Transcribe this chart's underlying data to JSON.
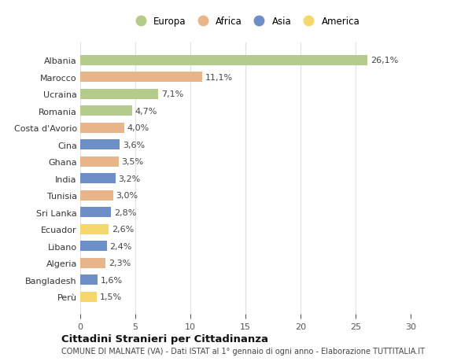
{
  "countries": [
    "Albania",
    "Marocco",
    "Ucraina",
    "Romania",
    "Costa d'Avorio",
    "Cina",
    "Ghana",
    "India",
    "Tunisia",
    "Sri Lanka",
    "Ecuador",
    "Libano",
    "Algeria",
    "Bangladesh",
    "Perù"
  ],
  "values": [
    26.1,
    11.1,
    7.1,
    4.7,
    4.0,
    3.6,
    3.5,
    3.2,
    3.0,
    2.8,
    2.6,
    2.4,
    2.3,
    1.6,
    1.5
  ],
  "labels": [
    "26,1%",
    "11,1%",
    "7,1%",
    "4,7%",
    "4,0%",
    "3,6%",
    "3,5%",
    "3,2%",
    "3,0%",
    "2,8%",
    "2,6%",
    "2,4%",
    "2,3%",
    "1,6%",
    "1,5%"
  ],
  "continents": [
    "Europa",
    "Africa",
    "Europa",
    "Europa",
    "Africa",
    "Asia",
    "Africa",
    "Asia",
    "Africa",
    "Asia",
    "America",
    "Asia",
    "Africa",
    "Asia",
    "America"
  ],
  "colors": {
    "Europa": "#b5cb8b",
    "Africa": "#e8b48a",
    "Asia": "#6e8ec8",
    "America": "#f5d76e"
  },
  "legend_order": [
    "Europa",
    "Africa",
    "Asia",
    "America"
  ],
  "title": "Cittadini Stranieri per Cittadinanza",
  "subtitle": "COMUNE DI MALNATE (VA) - Dati ISTAT al 1° gennaio di ogni anno - Elaborazione TUTTITALIA.IT",
  "xlim": [
    0,
    30
  ],
  "xticks": [
    0,
    5,
    10,
    15,
    20,
    25,
    30
  ],
  "background_color": "#ffffff",
  "grid_color": "#e0e0e0",
  "label_fontsize": 8,
  "ytick_fontsize": 8,
  "xtick_fontsize": 8
}
